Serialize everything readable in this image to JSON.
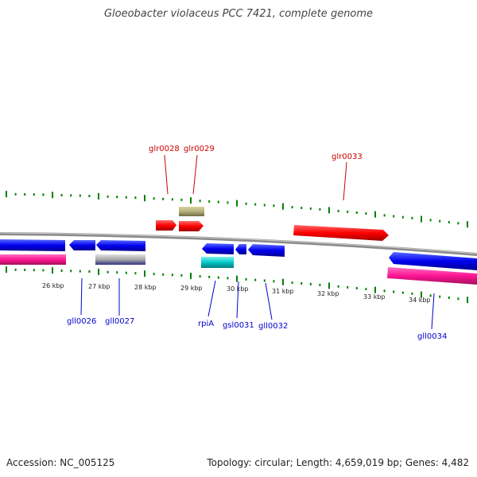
{
  "title": "Gloeobacter violaceus PCC 7421, complete genome",
  "footer": {
    "accession": "Accession: NC_005125",
    "summary": "Topology: circular; Length: 4,659,019 bp; Genes: 4,482"
  },
  "colors": {
    "forward_gene": "#ff0000",
    "reverse_gene": "#0000ff",
    "rna": "#ff1493",
    "pseudogene": "#b5b07a",
    "other_feature": "#00c8c8",
    "grey_feature": "#a0a0a0",
    "tick": "#008000",
    "backbone": "#888888",
    "forward_label": "#cc0000",
    "reverse_label": "#0000cc"
  },
  "kbp_labels": [
    "26 kbp",
    "27 kbp",
    "28 kbp",
    "29 kbp",
    "30 kbp",
    "31 kbp",
    "32 kbp",
    "33 kbp",
    "34 kbp"
  ],
  "forward_gene_labels": [
    "glr0028",
    "glr0029",
    "glr0033"
  ],
  "reverse_gene_labels": [
    "gll0026",
    "gll0027",
    "rpiA",
    "gsl0031",
    "gll0032",
    "gll0034"
  ]
}
